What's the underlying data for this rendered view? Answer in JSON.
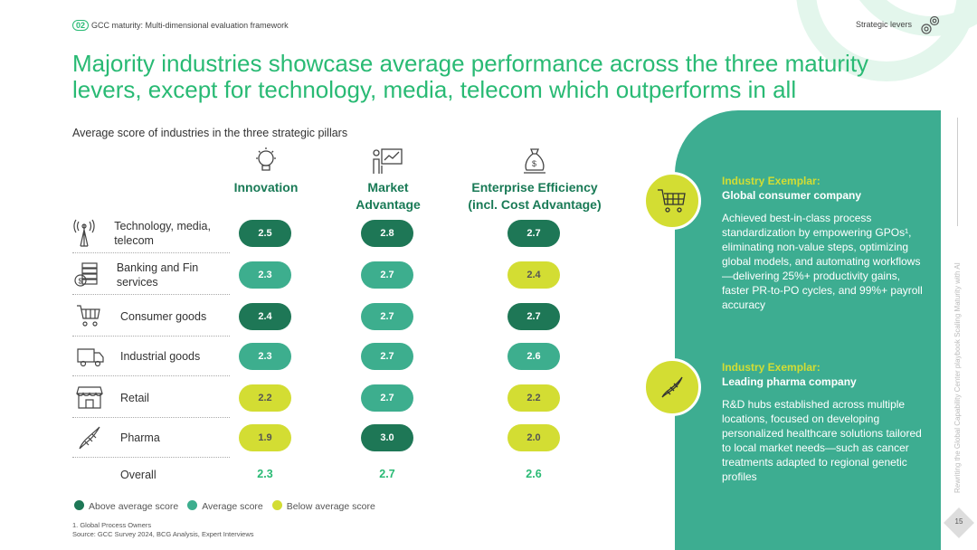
{
  "header": {
    "section_num": "02",
    "breadcrumb": "GCC maturity: Multi-dimensional evaluation framework",
    "right_label": "Strategic levers"
  },
  "title": "Majority industries showcase average performance across the three maturity levers, except for technology, media, telecom which outperforms in all",
  "subtitle": "Average score of industries in the three strategic pillars",
  "columns": [
    {
      "label": "Innovation",
      "icon": "lightbulb-icon"
    },
    {
      "label": "Market Advantage",
      "icon": "presentation-icon"
    },
    {
      "label": "Enterprise Efficiency (incl. Cost Advantage)",
      "icon": "money-bag-icon"
    }
  ],
  "rows": [
    {
      "label": "Technology, media, telecom",
      "icon": "antenna-icon",
      "scores": [
        {
          "v": "2.5",
          "c": "above"
        },
        {
          "v": "2.8",
          "c": "above"
        },
        {
          "v": "2.7",
          "c": "above"
        }
      ]
    },
    {
      "label": "Banking and Fin services",
      "icon": "money-icon",
      "scores": [
        {
          "v": "2.3",
          "c": "avg"
        },
        {
          "v": "2.7",
          "c": "avg"
        },
        {
          "v": "2.4",
          "c": "below"
        }
      ]
    },
    {
      "label": "Consumer goods",
      "icon": "cart-icon",
      "scores": [
        {
          "v": "2.4",
          "c": "above"
        },
        {
          "v": "2.7",
          "c": "avg"
        },
        {
          "v": "2.7",
          "c": "above"
        }
      ]
    },
    {
      "label": "Industrial goods",
      "icon": "truck-icon",
      "scores": [
        {
          "v": "2.3",
          "c": "avg"
        },
        {
          "v": "2.7",
          "c": "avg"
        },
        {
          "v": "2.6",
          "c": "avg"
        }
      ]
    },
    {
      "label": "Retail",
      "icon": "store-icon",
      "scores": [
        {
          "v": "2.2",
          "c": "below"
        },
        {
          "v": "2.7",
          "c": "avg"
        },
        {
          "v": "2.2",
          "c": "below"
        }
      ]
    },
    {
      "label": "Pharma",
      "icon": "dna-icon",
      "scores": [
        {
          "v": "1.9",
          "c": "below"
        },
        {
          "v": "3.0",
          "c": "above"
        },
        {
          "v": "2.0",
          "c": "below"
        }
      ]
    }
  ],
  "overall": {
    "label": "Overall",
    "values": [
      "2.3",
      "2.7",
      "2.6"
    ]
  },
  "legend": [
    {
      "label": "Above average score",
      "color": "#1e7756"
    },
    {
      "label": "Average score",
      "color": "#3dae8e"
    },
    {
      "label": "Below average score",
      "color": "#d3dd33"
    }
  ],
  "footnote": "1. Global Process Owners",
  "source": "Source: GCC Survey 2024, BCG Analysis, Expert Interviews",
  "exemplars": [
    {
      "kicker": "Industry Exemplar:",
      "title": "Global consumer company",
      "body": "Achieved best-in-class process standardization by empowering GPOs¹, eliminating non-value steps, optimizing global models, and automating workflows—delivering 25%+ productivity gains, faster PR-to-PO cycles, and 99%+ payroll accuracy"
    },
    {
      "kicker": "Industry Exemplar:",
      "title": "Leading pharma company",
      "body": "R&D hubs established across multiple locations, focused on developing personalized healthcare solutions tailored to local market needs—such as cancer treatments adapted to regional genetic profiles"
    }
  ],
  "side_text": "Rewriting the Global Capability Center playbook Scaling Maturity with AI",
  "page_number": "15"
}
